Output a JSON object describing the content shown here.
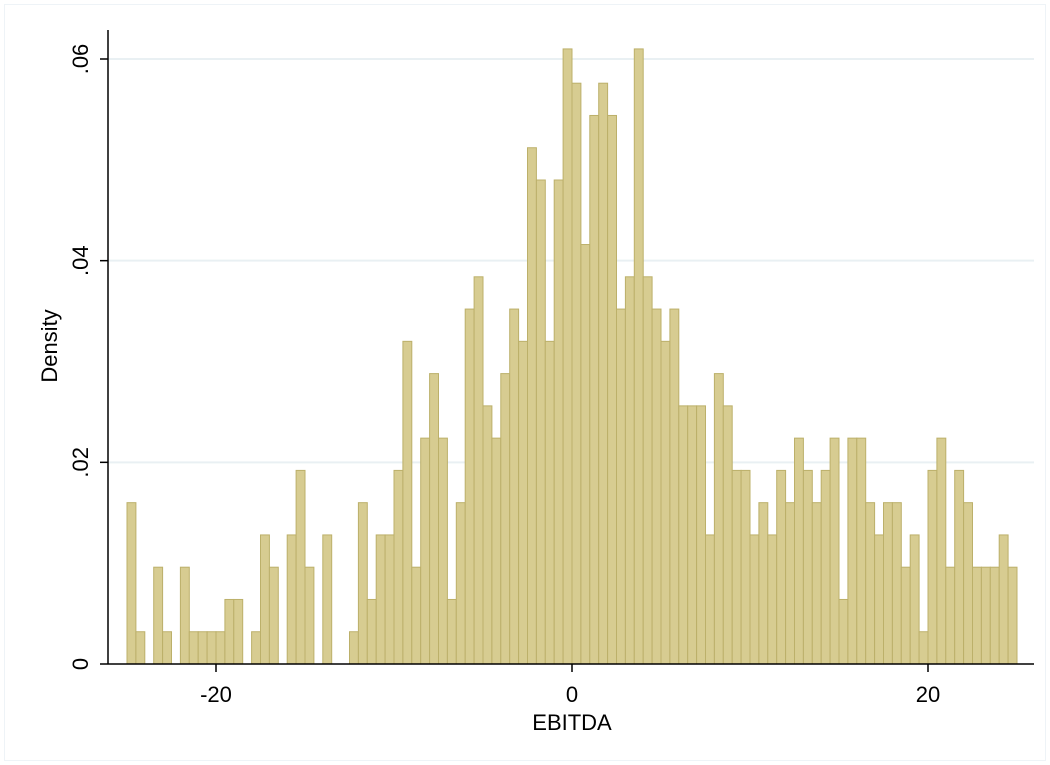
{
  "chart_data": {
    "type": "bar",
    "title": "",
    "xlabel": "EBITDA",
    "ylabel": "Density",
    "xlim": [
      -26.5,
      26.5
    ],
    "ylim": [
      0,
      0.063
    ],
    "grid": true,
    "x_ticks": [
      {
        "value": -20,
        "label": "-20"
      },
      {
        "value": 0,
        "label": "0"
      },
      {
        "value": 20,
        "label": "20"
      }
    ],
    "y_ticks": [
      {
        "value": 0,
        "label": "0"
      },
      {
        "value": 0.02,
        "label": ".02"
      },
      {
        "value": 0.04,
        "label": ".04"
      },
      {
        "value": 0.06,
        "label": ".06"
      }
    ],
    "bin_start": -25,
    "bin_width": 0.5,
    "values": [
      0.016,
      0.0032,
      0,
      0.0096,
      0.0032,
      0,
      0.0096,
      0.0032,
      0.0032,
      0.0032,
      0.0032,
      0.0064,
      0.0064,
      0,
      0.0032,
      0.0128,
      0.0096,
      0,
      0.0128,
      0.0192,
      0.0096,
      0,
      0.0128,
      0,
      0,
      0.0032,
      0.016,
      0.0064,
      0.0128,
      0.0128,
      0.0192,
      0.032,
      0.0096,
      0.0224,
      0.0288,
      0.0224,
      0.0064,
      0.016,
      0.0352,
      0.0384,
      0.0256,
      0.0224,
      0.0288,
      0.0352,
      0.032,
      0.0512,
      0.048,
      0.032,
      0.048,
      0.061,
      0.0576,
      0.0416,
      0.0544,
      0.0576,
      0.0544,
      0.0352,
      0.0384,
      0.061,
      0.0384,
      0.0352,
      0.032,
      0.0352,
      0.0256,
      0.0256,
      0.0256,
      0.0128,
      0.0288,
      0.0256,
      0.0192,
      0.0192,
      0.0128,
      0.016,
      0.0128,
      0.0192,
      0.016,
      0.0224,
      0.0192,
      0.016,
      0.0192,
      0.0224,
      0.0064,
      0.0224,
      0.0224,
      0.016,
      0.0128,
      0.016,
      0.016,
      0.0096,
      0.0128,
      0.0032,
      0.0192,
      0.0224,
      0.0096,
      0.0192,
      0.016,
      0.0096,
      0.0096,
      0.0096,
      0.0128,
      0.0096
    ],
    "colors": {
      "bar_fill": "#d7cc91",
      "bar_stroke": "#bcb06a",
      "grid": "#e9f0f3",
      "axis": "#000000"
    }
  }
}
